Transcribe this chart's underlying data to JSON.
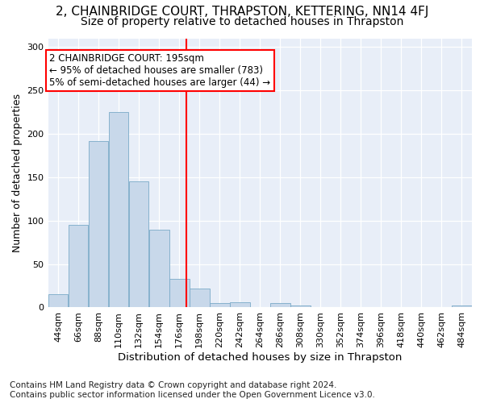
{
  "title": "2, CHAINBRIDGE COURT, THRAPSTON, KETTERING, NN14 4FJ",
  "subtitle": "Size of property relative to detached houses in Thrapston",
  "xlabel": "Distribution of detached houses by size in Thrapston",
  "ylabel": "Number of detached properties",
  "bar_color": "#c8d8ea",
  "bar_edge_color": "#7aaac8",
  "background_color": "#e8eef8",
  "annotation_text": "2 CHAINBRIDGE COURT: 195sqm\n← 95% of detached houses are smaller (783)\n5% of semi-detached houses are larger (44) →",
  "vline_x": 195,
  "vline_color": "red",
  "categories": [
    "44sqm",
    "66sqm",
    "88sqm",
    "110sqm",
    "132sqm",
    "154sqm",
    "176sqm",
    "198sqm",
    "220sqm",
    "242sqm",
    "264sqm",
    "286sqm",
    "308sqm",
    "330sqm",
    "352sqm",
    "374sqm",
    "396sqm",
    "418sqm",
    "440sqm",
    "462sqm",
    "484sqm"
  ],
  "bin_edges": [
    44,
    66,
    88,
    110,
    132,
    154,
    176,
    198,
    220,
    242,
    264,
    286,
    308,
    330,
    352,
    374,
    396,
    418,
    440,
    462,
    484,
    506
  ],
  "values": [
    15,
    95,
    192,
    225,
    145,
    90,
    33,
    22,
    5,
    6,
    0,
    5,
    2,
    0,
    0,
    0,
    0,
    0,
    0,
    0,
    2
  ],
  "ylim": [
    0,
    310
  ],
  "yticks": [
    0,
    50,
    100,
    150,
    200,
    250,
    300
  ],
  "footer_text": "Contains HM Land Registry data © Crown copyright and database right 2024.\nContains public sector information licensed under the Open Government Licence v3.0.",
  "footer_fontsize": 7.5,
  "title_fontsize": 11,
  "subtitle_fontsize": 10,
  "xlabel_fontsize": 9.5,
  "ylabel_fontsize": 9,
  "tick_fontsize": 8,
  "annotation_fontsize": 8.5
}
